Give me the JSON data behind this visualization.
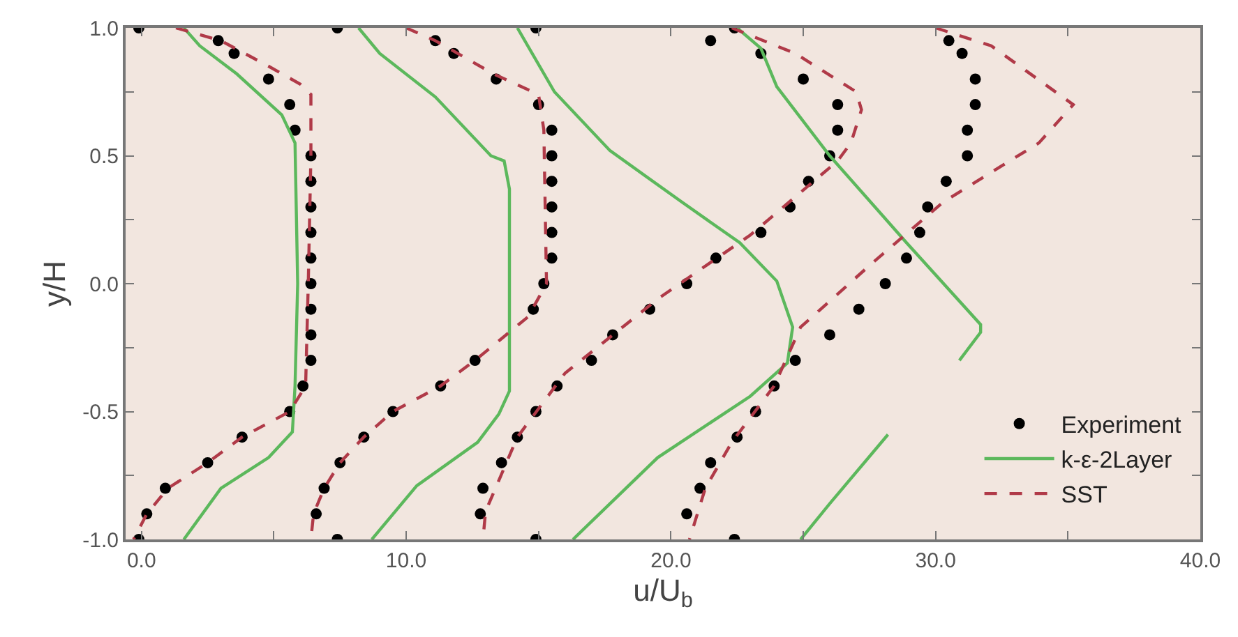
{
  "chart_data": {
    "type": "line",
    "xlabel": "u/U$_{b}$",
    "ylabel": "y/H",
    "xlim": [
      -0.6,
      40.0
    ],
    "ylim": [
      -1.0,
      1.0
    ],
    "xticks": [
      {
        "value": 0,
        "label": "0.0"
      },
      {
        "value": 5,
        "label": null
      },
      {
        "value": 10,
        "label": "10.0"
      },
      {
        "value": 15,
        "label": null
      },
      {
        "value": 20,
        "label": "20.0"
      },
      {
        "value": 25,
        "label": null
      },
      {
        "value": 30,
        "label": "30.0"
      },
      {
        "value": 35,
        "label": null
      },
      {
        "value": 40,
        "label": "40.0"
      }
    ],
    "yticks": [
      {
        "value": -1,
        "label": "-1.0"
      },
      {
        "value": -0.75,
        "label": null
      },
      {
        "value": -0.5,
        "label": "-0.5"
      },
      {
        "value": -0.25,
        "label": null
      },
      {
        "value": 0,
        "label": "0.0"
      },
      {
        "value": 0.25,
        "label": null
      },
      {
        "value": 0.5,
        "label": "0.5"
      },
      {
        "value": 0.75,
        "label": null
      },
      {
        "value": 1,
        "label": "1.0"
      }
    ],
    "grid": false,
    "legend": "bottom right",
    "series": [
      {
        "name": "Experiment",
        "type": "scatter",
        "marker": "circle",
        "color": "#000000",
        "x": [
          -0.1,
          2.9,
          3.5,
          4.8,
          5.6,
          5.8,
          6.4,
          6.4,
          6.4,
          6.4,
          6.4,
          6.4,
          6.4,
          6.4,
          6.4,
          6.1,
          5.6,
          3.8,
          2.5,
          0.9,
          0.2,
          -0.1,
          7.4,
          11.1,
          11.8,
          13.4,
          15.0,
          15.5,
          15.5,
          15.5,
          15.5,
          15.5,
          15.5,
          15.2,
          14.8,
          12.6,
          11.3,
          9.5,
          8.4,
          7.5,
          6.9,
          6.6,
          7.4,
          14.9,
          21.5,
          23.4,
          25.0,
          26.3,
          26.3,
          26.0,
          25.2,
          24.5,
          23.4,
          21.7,
          20.6,
          19.2,
          17.8,
          17.0,
          15.7,
          14.9,
          14.2,
          13.6,
          12.9,
          12.8,
          14.9,
          22.4,
          30.5,
          31.0,
          31.5,
          31.5,
          31.2,
          31.2,
          30.4,
          29.7,
          29.4,
          28.9,
          28.1,
          27.1,
          26.0,
          24.7,
          23.9,
          23.2,
          22.5,
          21.5,
          21.1,
          20.6,
          22.4
        ],
        "values": [
          1.0,
          0.95,
          0.9,
          0.8,
          0.7,
          0.6,
          0.5,
          0.4,
          0.3,
          0.2,
          0.1,
          0.0,
          -0.1,
          -0.2,
          -0.3,
          -0.4,
          -0.5,
          -0.6,
          -0.7,
          -0.8,
          -0.9,
          -1.0,
          1.0,
          0.95,
          0.9,
          0.8,
          0.7,
          0.6,
          0.5,
          0.4,
          0.3,
          0.2,
          0.1,
          0.0,
          -0.1,
          -0.3,
          -0.4,
          -0.5,
          -0.6,
          -0.7,
          -0.8,
          -0.9,
          -1.0,
          1.0,
          0.95,
          0.9,
          0.8,
          0.7,
          0.6,
          0.5,
          0.4,
          0.3,
          0.2,
          0.1,
          0.0,
          -0.1,
          -0.2,
          -0.3,
          -0.4,
          -0.5,
          -0.6,
          -0.7,
          -0.8,
          -0.9,
          -1.0,
          1.0,
          0.95,
          0.9,
          0.8,
          0.7,
          0.6,
          0.5,
          0.4,
          0.3,
          0.2,
          0.1,
          0.0,
          -0.1,
          -0.2,
          -0.3,
          -0.4,
          -0.5,
          -0.6,
          -0.7,
          -0.8,
          -0.9,
          -1.0
        ]
      },
      {
        "name": "k-ε-2Layer",
        "line_style": "solid",
        "color": "#5cb85c",
        "x": [
          1.6,
          2.2,
          3.6,
          5.3,
          5.8,
          5.9,
          5.8,
          5.7,
          4.8,
          3.0,
          1.6,
          null,
          8.2,
          9.0,
          11.1,
          13.2,
          13.7,
          13.9,
          13.9,
          13.5,
          12.7,
          10.4,
          8.7,
          null,
          14.2,
          15.6,
          17.7,
          20.4,
          22.6,
          24.0,
          24.6,
          24.4,
          23.0,
          19.5,
          16.3,
          null,
          22.5,
          23.4,
          24.0,
          26.0,
          28.9,
          31.7,
          31.7,
          30.9,
          null,
          28.2,
          26.0,
          24.9
        ],
        "values": [
          1.0,
          0.93,
          0.82,
          0.66,
          0.55,
          0.0,
          -0.4,
          -0.58,
          -0.68,
          -0.8,
          -1.0,
          null,
          1.0,
          0.9,
          0.73,
          0.5,
          0.48,
          0.37,
          -0.42,
          -0.51,
          -0.62,
          -0.79,
          -1.0,
          null,
          1.0,
          0.75,
          0.52,
          0.32,
          0.16,
          0.01,
          -0.17,
          -0.31,
          -0.44,
          -0.68,
          -1.0,
          null,
          1.0,
          0.92,
          0.77,
          0.5,
          0.16,
          -0.16,
          -0.19,
          -0.3,
          null,
          -0.59,
          -0.86,
          -1.0
        ]
      },
      {
        "name": "SST",
        "line_style": "dashed",
        "color": "#b03a48",
        "x": [
          1.3,
          3.0,
          4.8,
          6.0,
          6.4,
          6.4,
          6.3,
          6.2,
          5.6,
          3.8,
          2.5,
          1.0,
          0.2,
          -0.3,
          null,
          10.0,
          11.1,
          13.3,
          15.0,
          15.2,
          15.3,
          14.6,
          12.6,
          11.3,
          9.5,
          8.4,
          7.5,
          6.9,
          6.5,
          6.4,
          null,
          22.3,
          24.7,
          27.0,
          27.2,
          26.8,
          26.3,
          23.0,
          19.5,
          16.0,
          14.2,
          13.0,
          12.9,
          null,
          30.0,
          32.1,
          35.2,
          33.9,
          30.3,
          27.6,
          24.9,
          23.9,
          22.3,
          21.3,
          20.7
        ],
        "values": [
          1.0,
          0.95,
          0.85,
          0.78,
          0.74,
          0.5,
          0.0,
          -0.4,
          -0.5,
          -0.6,
          -0.7,
          -0.8,
          -0.9,
          -1.0,
          null,
          1.0,
          0.95,
          0.82,
          0.74,
          0.6,
          0.0,
          -0.13,
          -0.3,
          -0.4,
          -0.5,
          -0.6,
          -0.7,
          -0.8,
          -0.9,
          -1.0,
          null,
          1.0,
          0.9,
          0.75,
          0.68,
          0.55,
          0.48,
          0.19,
          -0.06,
          -0.35,
          -0.6,
          -0.89,
          -1.0,
          null,
          1.0,
          0.93,
          0.7,
          0.55,
          0.32,
          0.08,
          -0.17,
          -0.4,
          -0.62,
          -0.8,
          -1.0
        ]
      }
    ]
  }
}
